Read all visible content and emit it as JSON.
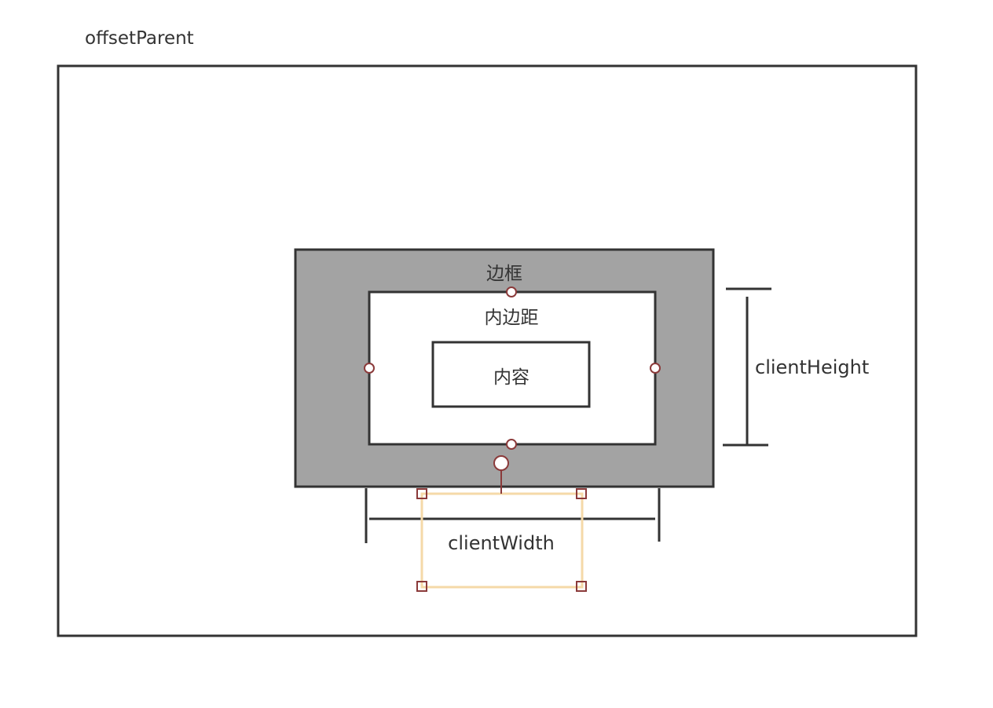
{
  "diagram": {
    "offset_parent_label": "offsetParent",
    "border_label": "边框",
    "padding_label": "内边距",
    "content_label": "内容",
    "client_height_label": "clientHeight",
    "client_width_label": "clientWidth"
  },
  "colors": {
    "stroke": "#333333",
    "border_fill": "#a3a3a3",
    "handle_stroke": "#8b3a3a",
    "selection_stroke": "#f5d9a8"
  }
}
